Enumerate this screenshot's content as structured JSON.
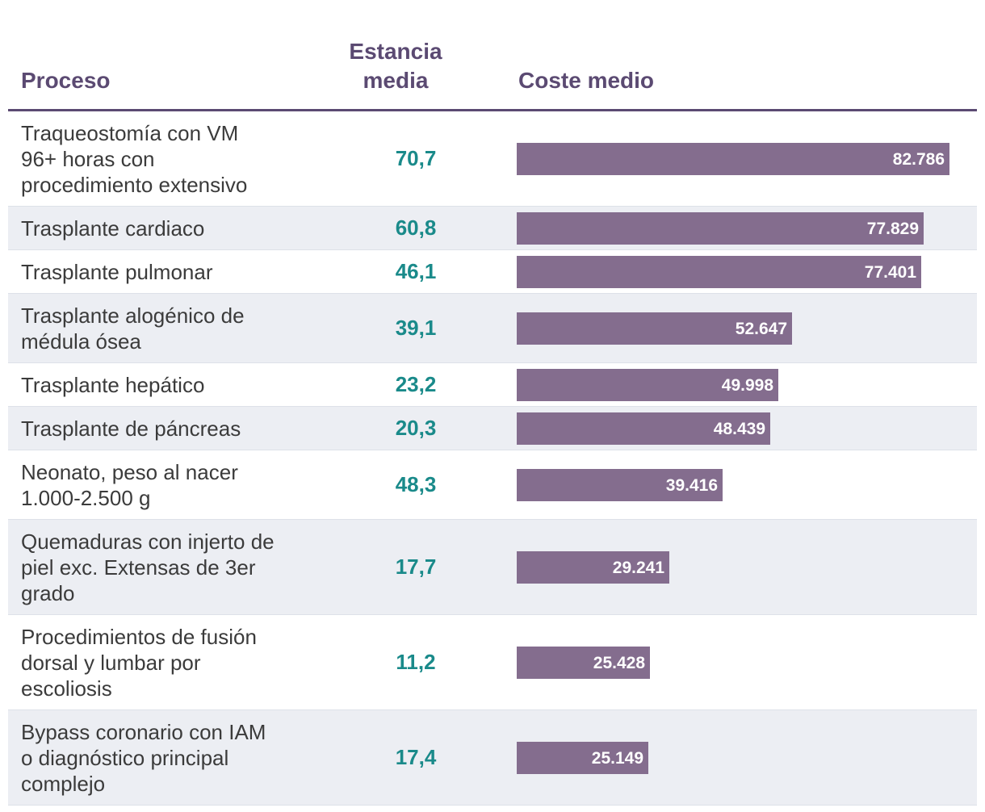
{
  "chart_data": {
    "type": "table",
    "columns": [
      "Proceso",
      "Estancia media",
      "Coste medio"
    ],
    "rows": [
      {
        "proceso": "Traqueostomía con VM 96+ horas con procedimiento extensivo",
        "estancia": "70,7",
        "coste": 82786,
        "coste_label": "82.786"
      },
      {
        "proceso": "Trasplante cardiaco",
        "estancia": "60,8",
        "coste": 77829,
        "coste_label": "77.829"
      },
      {
        "proceso": "Trasplante pulmonar",
        "estancia": "46,1",
        "coste": 77401,
        "coste_label": "77.401"
      },
      {
        "proceso": "Trasplante alogénico de médula ósea",
        "estancia": "39,1",
        "coste": 52647,
        "coste_label": "52.647"
      },
      {
        "proceso": "Trasplante hepático",
        "estancia": "23,2",
        "coste": 49998,
        "coste_label": "49.998"
      },
      {
        "proceso": "Trasplante de páncreas",
        "estancia": "20,3",
        "coste": 48439,
        "coste_label": "48.439"
      },
      {
        "proceso": "Neonato, peso al nacer 1.000-2.500 g",
        "estancia": "48,3",
        "coste": 39416,
        "coste_label": "39.416"
      },
      {
        "proceso": "Quemaduras con injerto de piel exc. Extensas de 3er grado",
        "estancia": "17,7",
        "coste": 29241,
        "coste_label": "29.241"
      },
      {
        "proceso": "Procedimientos de fusión dorsal y lumbar por escoliosis",
        "estancia": "11,2",
        "coste": 25428,
        "coste_label": "25.428"
      },
      {
        "proceso": "Bypass coronario con IAM o diagnóstico principal complejo",
        "estancia": "17,4",
        "coste": 25149,
        "coste_label": "25.149"
      }
    ],
    "coste_max": 82786
  },
  "colors": {
    "header": "#5b4a72",
    "bar": "#846d8e",
    "stay": "#1a8a8a",
    "row_alt": "#eceef3"
  }
}
